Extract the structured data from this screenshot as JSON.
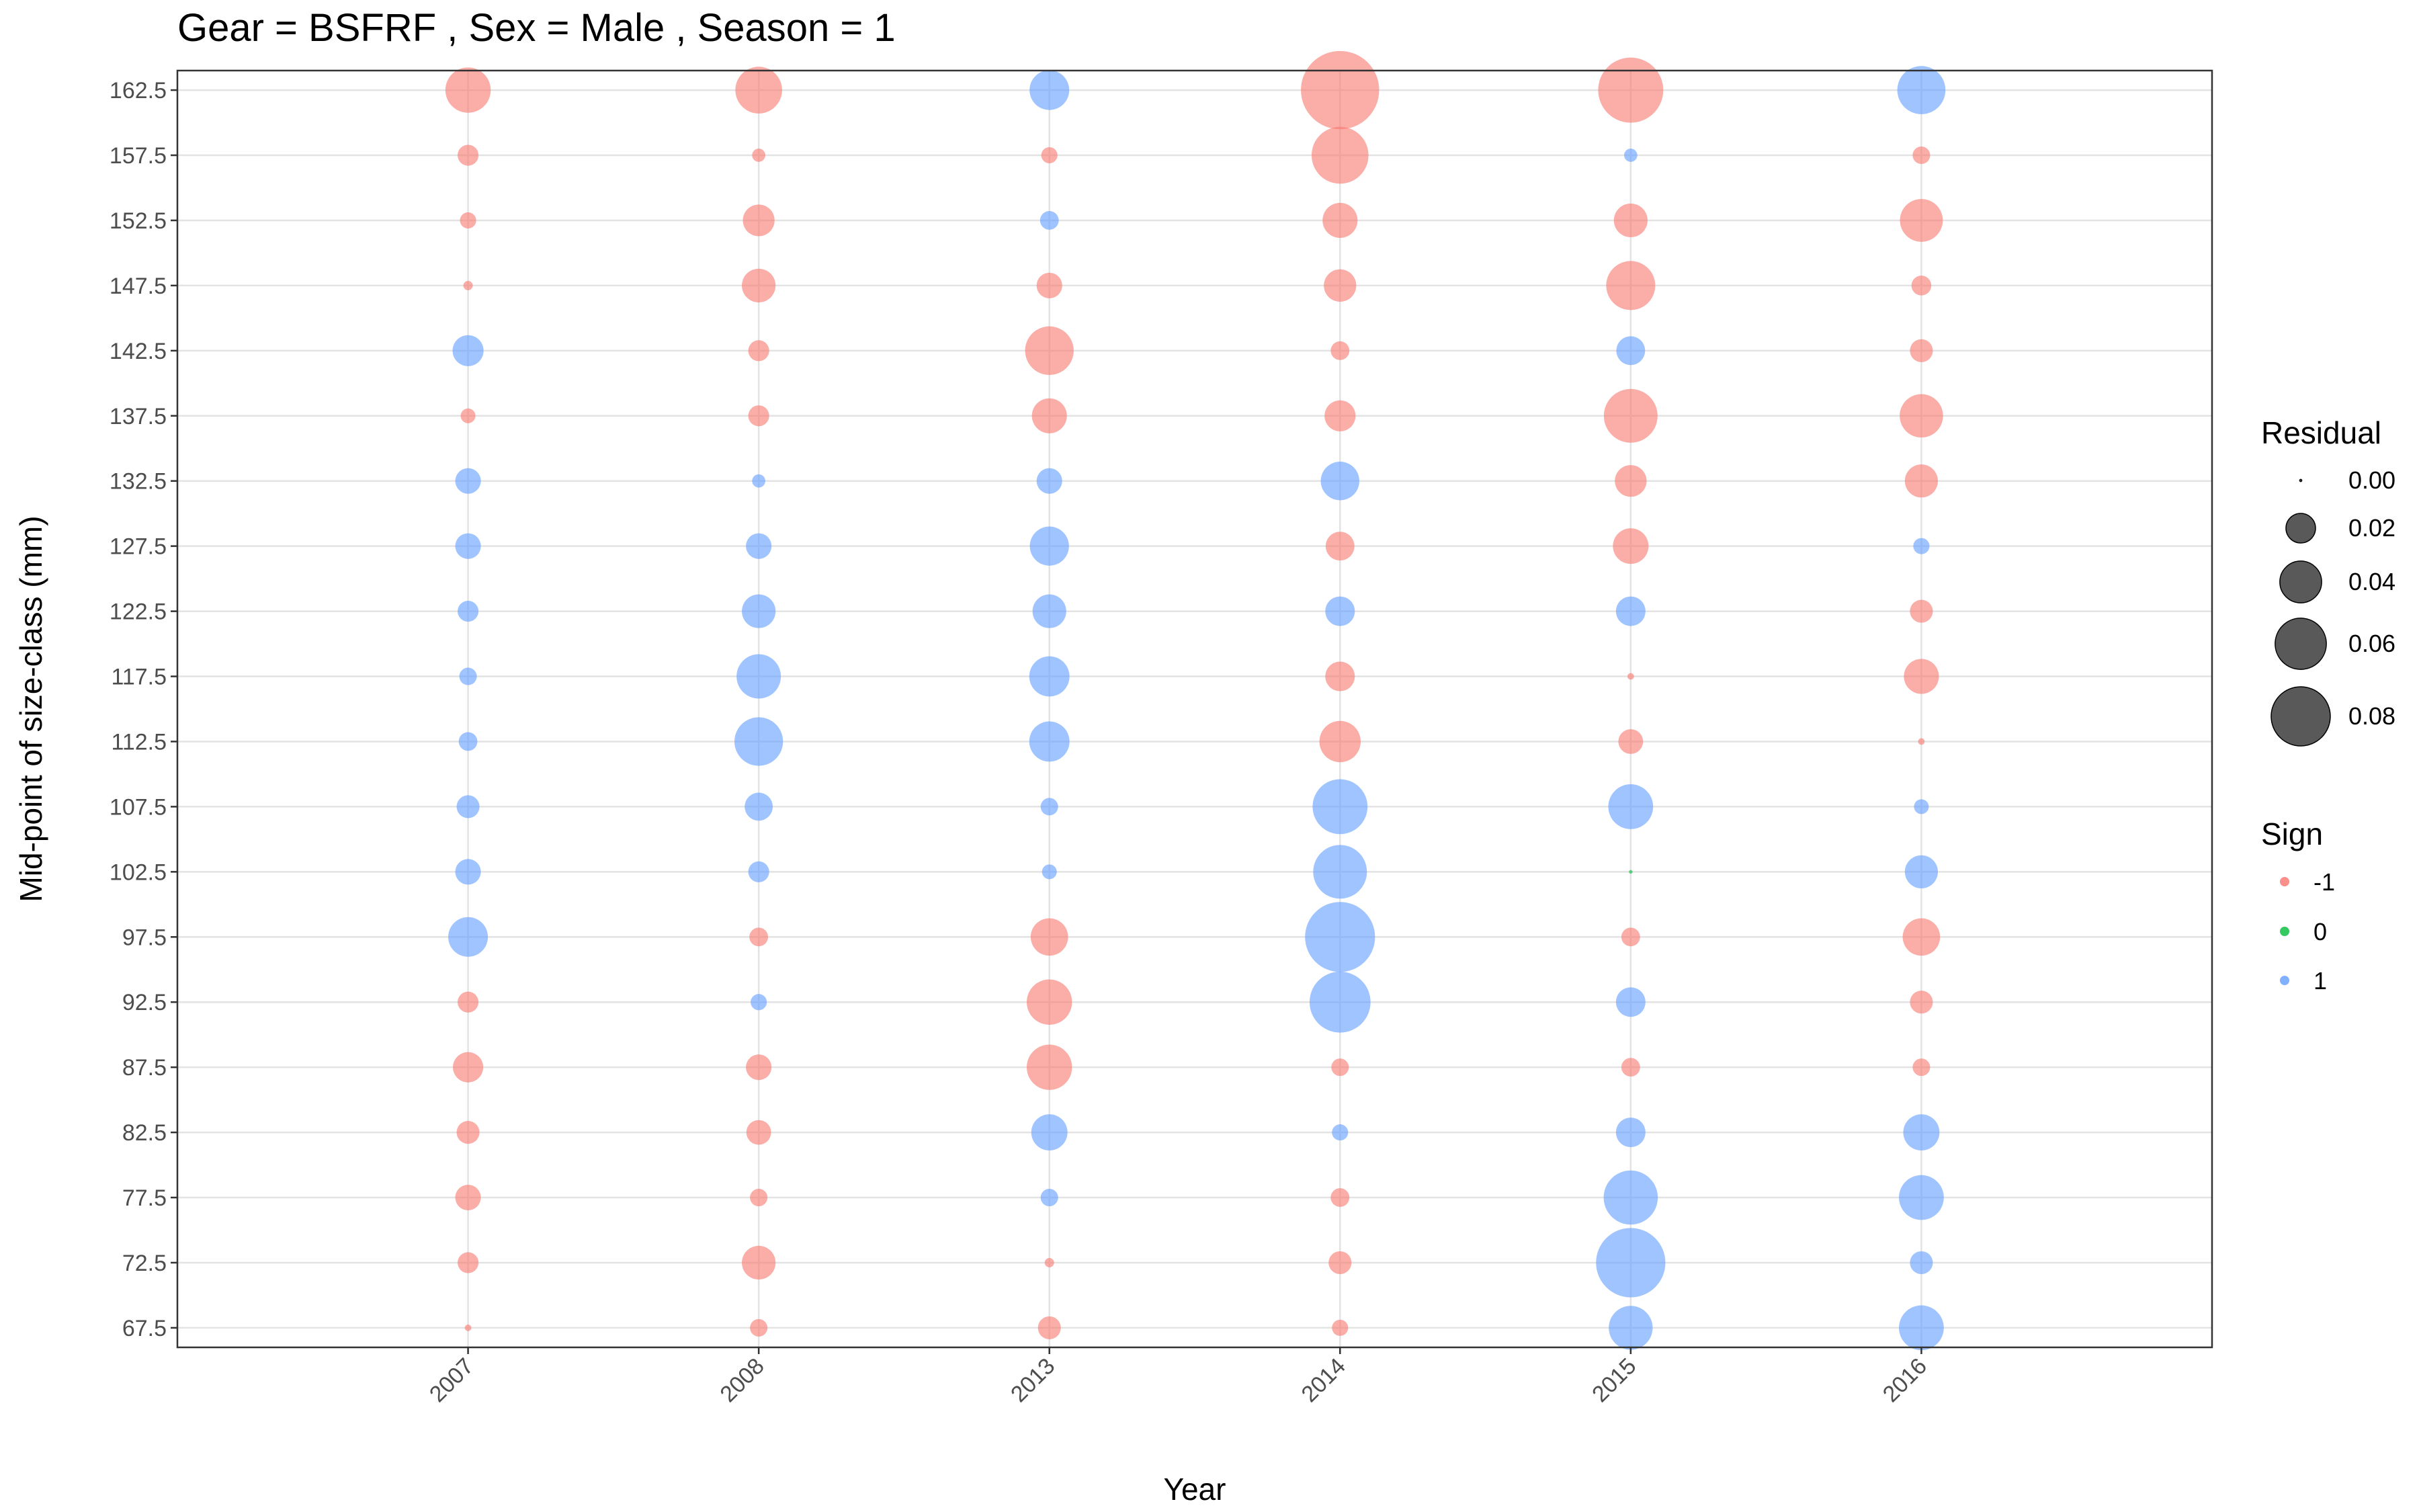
{
  "chart_data": {
    "type": "scatter",
    "title": "Gear = BSFRF , Sex = Male , Season = 1",
    "xlabel": "Year",
    "ylabel": "Mid-point of size-class (mm)",
    "categories": [
      "2007",
      "2008",
      "2013",
      "2014",
      "2015",
      "2016"
    ],
    "y_ticks": [
      "67.5",
      "72.5",
      "77.5",
      "82.5",
      "87.5",
      "92.5",
      "97.5",
      "102.5",
      "107.5",
      "112.5",
      "117.5",
      "122.5",
      "127.5",
      "132.5",
      "137.5",
      "142.5",
      "147.5",
      "152.5",
      "157.5",
      "162.5"
    ],
    "ylim": [
      66.0,
      164.0
    ],
    "grid": true,
    "legend_placement": "right",
    "size_legend": {
      "title": "Residual",
      "values": [
        0.0,
        0.02,
        0.04,
        0.06,
        0.08
      ],
      "labels": [
        "0.00",
        "0.02",
        "0.04",
        "0.06",
        "0.08"
      ]
    },
    "color_legend": {
      "title": "Sign",
      "entries": [
        {
          "label": "-1",
          "color": "#F8766D"
        },
        {
          "label": "0",
          "color": "#00BA38"
        },
        {
          "label": "1",
          "color": "#619CFF"
        }
      ]
    },
    "size_classes": [
      67.5,
      72.5,
      77.5,
      82.5,
      87.5,
      92.5,
      97.5,
      102.5,
      107.5,
      112.5,
      117.5,
      122.5,
      127.5,
      132.5,
      137.5,
      142.5,
      147.5,
      152.5,
      157.5,
      162.5
    ],
    "series": [
      {
        "year": "2007",
        "residual": [
          0.001,
          0.01,
          0.015,
          0.012,
          0.021,
          0.01,
          0.036,
          0.015,
          0.012,
          0.008,
          0.007,
          0.01,
          0.015,
          0.015,
          0.005,
          0.022,
          0.002,
          0.006,
          0.01,
          0.047
        ],
        "sign": [
          -1,
          -1,
          -1,
          -1,
          -1,
          -1,
          1,
          1,
          1,
          1,
          1,
          1,
          1,
          1,
          -1,
          1,
          -1,
          -1,
          -1,
          -1
        ]
      },
      {
        "year": "2008",
        "residual": [
          0.007,
          0.026,
          0.007,
          0.014,
          0.015,
          0.006,
          0.008,
          0.01,
          0.018,
          0.054,
          0.045,
          0.026,
          0.015,
          0.004,
          0.01,
          0.01,
          0.026,
          0.023,
          0.004,
          0.05
        ],
        "sign": [
          -1,
          -1,
          -1,
          -1,
          -1,
          1,
          -1,
          1,
          1,
          1,
          1,
          1,
          1,
          1,
          -1,
          -1,
          -1,
          -1,
          -1,
          -1
        ]
      },
      {
        "year": "2013",
        "residual": [
          0.012,
          0.002,
          0.007,
          0.03,
          0.047,
          0.047,
          0.032,
          0.005,
          0.007,
          0.037,
          0.037,
          0.026,
          0.035,
          0.015,
          0.028,
          0.054,
          0.015,
          0.008,
          0.006,
          0.036
        ],
        "sign": [
          -1,
          -1,
          1,
          1,
          -1,
          -1,
          -1,
          1,
          1,
          1,
          1,
          1,
          1,
          1,
          -1,
          -1,
          -1,
          1,
          -1,
          1
        ]
      },
      {
        "year": "2014",
        "residual": [
          0.006,
          0.012,
          0.008,
          0.006,
          0.007,
          0.085,
          0.112,
          0.066,
          0.069,
          0.039,
          0.02,
          0.02,
          0.019,
          0.034,
          0.022,
          0.008,
          0.024,
          0.028,
          0.074,
          0.14
        ],
        "sign": [
          -1,
          -1,
          -1,
          1,
          -1,
          1,
          1,
          1,
          1,
          -1,
          -1,
          1,
          -1,
          1,
          -1,
          -1,
          -1,
          -1,
          -1,
          -1
        ]
      },
      {
        "year": "2015",
        "residual": [
          0.044,
          0.11,
          0.067,
          0.02,
          0.008,
          0.02,
          0.008,
          0.0003,
          0.046,
          0.014,
          0.001,
          0.02,
          0.029,
          0.023,
          0.066,
          0.019,
          0.055,
          0.026,
          0.004,
          0.097
        ],
        "sign": [
          1,
          1,
          1,
          1,
          -1,
          1,
          -1,
          0,
          1,
          -1,
          -1,
          1,
          -1,
          -1,
          -1,
          1,
          -1,
          -1,
          1,
          -1
        ]
      },
      {
        "year": "2016",
        "residual": [
          0.046,
          0.012,
          0.046,
          0.03,
          0.007,
          0.012,
          0.032,
          0.025,
          0.005,
          0.001,
          0.028,
          0.012,
          0.006,
          0.025,
          0.043,
          0.012,
          0.009,
          0.042,
          0.007,
          0.053
        ],
        "sign": [
          1,
          1,
          1,
          1,
          -1,
          -1,
          -1,
          1,
          1,
          -1,
          -1,
          -1,
          1,
          -1,
          -1,
          -1,
          -1,
          -1,
          -1,
          1
        ]
      }
    ]
  }
}
